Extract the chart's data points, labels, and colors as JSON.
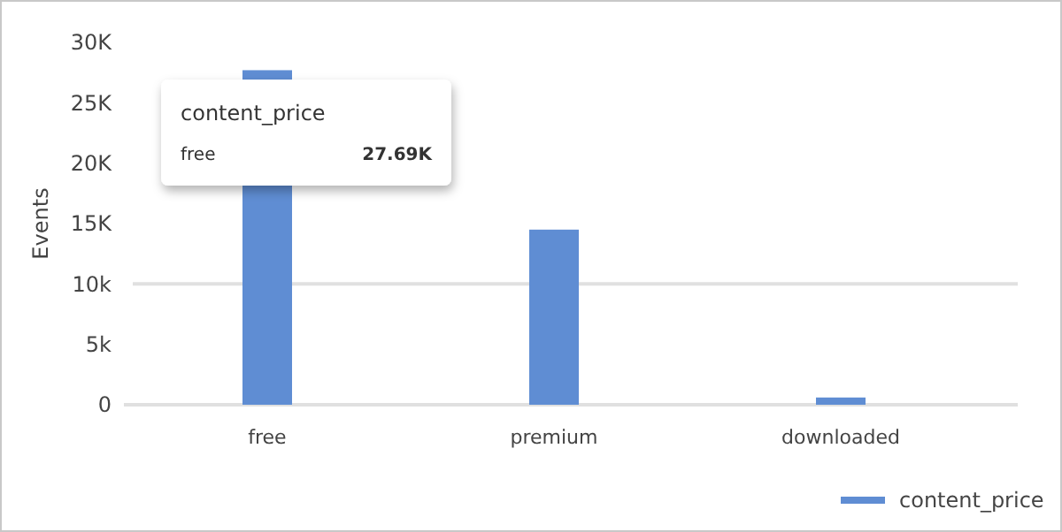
{
  "chart_data": {
    "type": "bar",
    "ylabel": "Events",
    "categories": [
      "free",
      "premium",
      "downloaded"
    ],
    "series": [
      {
        "name": "content_price",
        "color": "#5f8dd3",
        "values": [
          27700,
          14500,
          600
        ]
      }
    ],
    "annotations": [
      "27.69K"
    ],
    "ylim": [
      0,
      30000
    ],
    "yticks": [
      0,
      {
        "value": 5000,
        "label": "5k"
      },
      {
        "value": 10000,
        "label": "10k"
      },
      {
        "value": 15000,
        "label": "15K"
      },
      {
        "value": 20000,
        "label": "20K"
      },
      {
        "value": 25000,
        "label": "25K"
      },
      {
        "value": 30000,
        "label": "30K"
      }
    ],
    "ref_lines": [
      {
        "axis": "y",
        "value": 10000,
        "color": "#e0e0e0"
      }
    ],
    "legend": "bottom right"
  }
}
